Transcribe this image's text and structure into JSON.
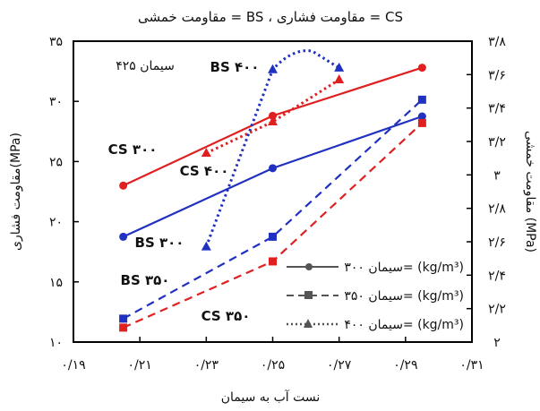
{
  "chart_data": {
    "type": "line",
    "title": "مقاومت خمشی = BS ، مقاومت فشاری = CS",
    "xlabel": "نست آب به سیمان",
    "ylabel_left": "مقاومت فشاری(MPa)",
    "ylabel_right": "مقاومت خمشی (MPa)",
    "xlim": [
      0.19,
      0.31
    ],
    "ylim_left": [
      10,
      35
    ],
    "ylim_right": [
      2,
      3.8
    ],
    "x_ticks": [
      0.19,
      0.21,
      0.23,
      0.25,
      0.27,
      0.29,
      0.31
    ],
    "x_tick_labels": [
      "۰/۱۹",
      "۰/۲۱",
      "۰/۲۳",
      "۰/۲۵",
      "۰/۲۷",
      "۰/۲۹",
      "۰/۳۱"
    ],
    "y_left_ticks": [
      10,
      15,
      20,
      25,
      30,
      35
    ],
    "y_left_tick_labels": [
      "۱۰",
      "۱۵",
      "۲۰",
      "۲۵",
      "۳۰",
      "۳۵"
    ],
    "y_right_ticks": [
      2,
      2.2,
      2.4,
      2.6,
      2.8,
      3,
      3.2,
      3.4,
      3.6,
      3.8
    ],
    "y_right_tick_labels": [
      "۲",
      "۲/۲",
      "۲/۴",
      "۲/۶",
      "۲/۸",
      "۳",
      "۳/۲",
      "۳/۴",
      "۳/۶",
      "۳/۸"
    ],
    "panel_label": "سیمان ۴۲۵",
    "series": [
      {
        "name": "CS ۳۰۰",
        "axis": "left",
        "color": "#e02020",
        "style": "solid",
        "marker": "circle",
        "x": [
          0.205,
          0.25,
          0.295
        ],
        "y": [
          23,
          28.8,
          32.8
        ]
      },
      {
        "name": "BS ۳۰۰",
        "axis": "right",
        "color": "#2030c0",
        "style": "solid",
        "marker": "circle",
        "x": [
          0.205,
          0.25,
          0.295
        ],
        "y": [
          2.63,
          3.04,
          3.35
        ]
      },
      {
        "name": "CS ۳۵۰",
        "axis": "left",
        "color": "#e02020",
        "style": "dashed",
        "marker": "square",
        "x": [
          0.205,
          0.25,
          0.295
        ],
        "y": [
          11.2,
          16.7,
          28.2
        ]
      },
      {
        "name": "BS ۳۵۰",
        "axis": "right",
        "color": "#2030c0",
        "style": "dashed",
        "marker": "square",
        "x": [
          0.205,
          0.25,
          0.295
        ],
        "y": [
          2.14,
          2.63,
          3.45
        ]
      },
      {
        "name": "CS ۴۰۰",
        "axis": "left",
        "color": "#e02020",
        "style": "dotted",
        "marker": "triangle",
        "x": [
          0.23,
          0.25,
          0.27
        ],
        "y": [
          25.7,
          28.3,
          31.8
        ]
      },
      {
        "name": "BS ۴۰۰",
        "axis": "right",
        "color": "#2030c0",
        "style": "dotted",
        "marker": "triangle",
        "x": [
          0.23,
          0.25,
          0.262,
          0.27
        ],
        "y": [
          2.57,
          3.63,
          3.74,
          3.64
        ]
      }
    ],
    "legend": [
      {
        "label": "سیمان ۳۰۰= (kg/m³)",
        "style": "solid",
        "marker": "circle"
      },
      {
        "label": "سیمان ۳۵۰= (kg/m³)",
        "style": "dashed",
        "marker": "square"
      },
      {
        "label": "سیمان ۴۰۰= (kg/m³)",
        "style": "dotted",
        "marker": "triangle"
      }
    ],
    "legend_position": "bottom-right",
    "annotations": [
      "CS ۳۰۰",
      "BS ۳۰۰",
      "CS ۳۵۰",
      "BS ۳۵۰",
      "CS ۴۰۰",
      "BS ۴۰۰"
    ],
    "grid": false
  }
}
